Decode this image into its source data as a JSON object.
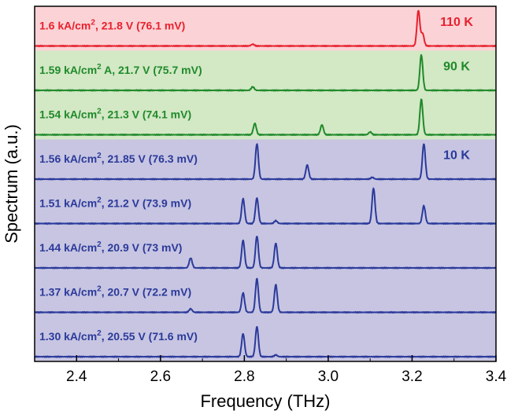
{
  "chart_data": {
    "type": "line",
    "title": "",
    "xlabel": "Frequency (THz)",
    "ylabel": "Spectrum (a.u.)",
    "xlim": [
      2.3,
      3.4
    ],
    "x_ticks": [
      "2.4",
      "2.6",
      "2.8",
      "3.0",
      "3.2",
      "3.4"
    ],
    "x_tick_values": [
      2.4,
      2.6,
      2.8,
      3.0,
      3.2,
      3.4
    ],
    "grid": false,
    "stacked_offset": true,
    "regions": [
      {
        "temperature": "110 K",
        "color": "#fbd3d6",
        "traces": [
          0
        ]
      },
      {
        "temperature": "90 K",
        "color": "#d3e8c5",
        "traces": [
          1,
          2
        ]
      },
      {
        "temperature": "10 K",
        "color": "#c7c5e2",
        "traces": [
          3,
          4,
          5,
          6,
          7
        ]
      }
    ],
    "series": [
      {
        "name": "1.6 kA/cm², 21.8 V (76.1 mV)",
        "label_main": "1.6 kA/cm",
        "label_sup": "2",
        "label_rest": ", 21.8 V (76.1 mV)",
        "color": "#e8212e",
        "peaks": [
          {
            "x": 2.82,
            "y": 0.05
          },
          {
            "x": 3.215,
            "y": 1.0
          },
          {
            "x": 3.225,
            "y": 0.35
          }
        ]
      },
      {
        "name": "1.59 kA/cm² A, 21.7 V (75.7 mV)",
        "label_main": "1.59 kA/cm",
        "label_sup": "2",
        "label_rest": " A, 21.7 V (75.7 mV)",
        "color": "#1f8a2a",
        "peaks": [
          {
            "x": 2.82,
            "y": 0.1
          },
          {
            "x": 3.222,
            "y": 1.0
          }
        ]
      },
      {
        "name": "1.54 kA/cm², 21.3 V (74.1 mV)",
        "label_main": "1.54 kA/cm",
        "label_sup": "2",
        "label_rest": ", 21.3 V (74.1 mV)",
        "color": "#1f8a2a",
        "peaks": [
          {
            "x": 2.825,
            "y": 0.32
          },
          {
            "x": 2.985,
            "y": 0.28
          },
          {
            "x": 3.1,
            "y": 0.08
          },
          {
            "x": 3.222,
            "y": 1.0
          }
        ]
      },
      {
        "name": "1.56 kA/cm², 21.85 V (76.3 mV)",
        "label_main": "1.56 kA/cm",
        "label_sup": "2",
        "label_rest": ", 21.85 V (76.3 mV)",
        "color": "#2b3a9a",
        "peaks": [
          {
            "x": 2.83,
            "y": 1.0
          },
          {
            "x": 2.95,
            "y": 0.4
          },
          {
            "x": 3.105,
            "y": 0.05
          },
          {
            "x": 3.228,
            "y": 1.0
          }
        ]
      },
      {
        "name": "1.51 kA/cm², 21.2 V (73.9 mV)",
        "label_main": "1.51 kA/cm",
        "label_sup": "2",
        "label_rest": ", 21.2 V (73.9 mV)",
        "color": "#2b3a9a",
        "peaks": [
          {
            "x": 2.797,
            "y": 0.7
          },
          {
            "x": 2.83,
            "y": 0.72
          },
          {
            "x": 2.875,
            "y": 0.08
          },
          {
            "x": 3.108,
            "y": 1.0
          },
          {
            "x": 3.228,
            "y": 0.5
          }
        ]
      },
      {
        "name": "1.44 kA/cm², 20.9 V (73 mV)",
        "label_main": "1.44 kA/cm",
        "label_sup": "2",
        "label_rest": ", 20.9 V (73 mV)",
        "color": "#2b3a9a",
        "peaks": [
          {
            "x": 2.672,
            "y": 0.28
          },
          {
            "x": 2.797,
            "y": 0.78
          },
          {
            "x": 2.83,
            "y": 0.9
          },
          {
            "x": 2.875,
            "y": 0.7
          }
        ]
      },
      {
        "name": "1.37 kA/cm², 20.7 V (72.2 mV)",
        "label_main": "1.37 kA/cm",
        "label_sup": "2",
        "label_rest": ", 20.7 V (72.2 mV)",
        "color": "#2b3a9a",
        "peaks": [
          {
            "x": 2.672,
            "y": 0.1
          },
          {
            "x": 2.797,
            "y": 0.55
          },
          {
            "x": 2.83,
            "y": 0.95
          },
          {
            "x": 2.875,
            "y": 0.78
          }
        ]
      },
      {
        "name": "1.30 kA/cm², 20.55 V (71.6 mV)",
        "label_main": "1.30 kA/cm",
        "label_sup": "2",
        "label_rest": ", 20.55 V (71.6 mV)",
        "color": "#2b3a9a",
        "peaks": [
          {
            "x": 2.797,
            "y": 0.65
          },
          {
            "x": 2.83,
            "y": 0.85
          },
          {
            "x": 2.875,
            "y": 0.05
          }
        ]
      }
    ]
  }
}
